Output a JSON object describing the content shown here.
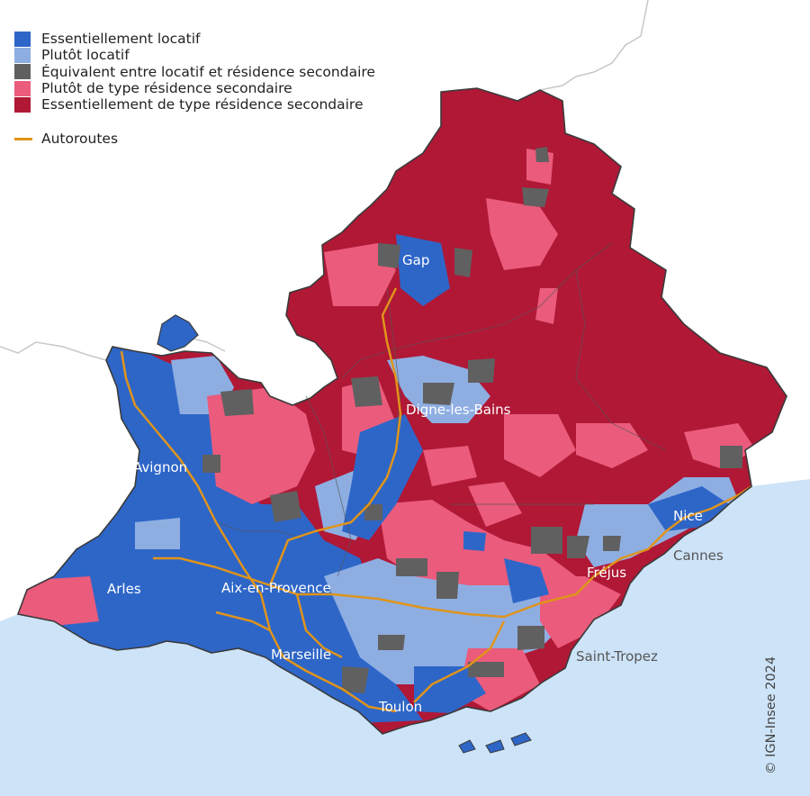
{
  "legend": {
    "categories": [
      {
        "label": "Essentiellement locatif",
        "color": "#2e66c8"
      },
      {
        "label": "Plutôt locatif",
        "color": "#8eaee2"
      },
      {
        "label": "Équivalent entre locatif et résidence secondaire",
        "color": "#606060"
      },
      {
        "label": "Plutôt de type résidence secondaire",
        "color": "#ea5b7c"
      },
      {
        "label": "Essentiellement de type résidence secondaire",
        "color": "#b01836"
      }
    ],
    "highway_label": "Autoroutes",
    "highway_color": "#e0941a"
  },
  "cities": {
    "gap": "Gap",
    "digne": "Digne-les-Bains",
    "avignon": "Avignon",
    "arles": "Arles",
    "aix": "Aix-en-Provence",
    "marseille": "Marseille",
    "toulon": "Toulon",
    "frejus": "Fréjus",
    "nice": "Nice",
    "cannes": "Cannes",
    "saint_tropez": "Saint-Tropez"
  },
  "copyright": "© IGN-Insee 2024",
  "colors": {
    "sea": "#cde3f8",
    "border": "#c8c8c8",
    "outline": "#3a3a3a",
    "dept_border": "#555555"
  }
}
